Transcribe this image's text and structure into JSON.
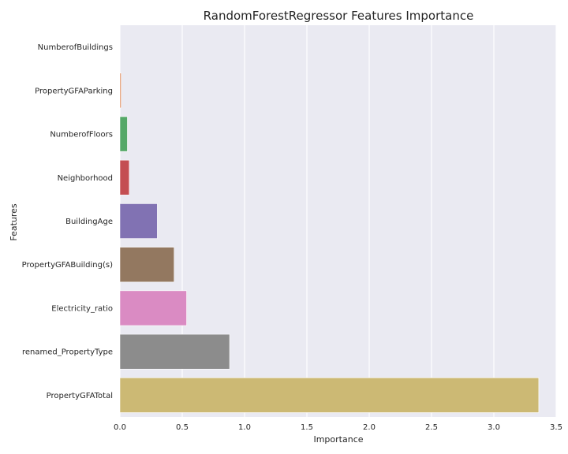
{
  "chart_data": {
    "type": "bar",
    "orientation": "horizontal",
    "title": "RandomForestRegressor Features Importance",
    "xlabel": "Importance",
    "ylabel": "Features",
    "xlim": [
      0,
      3.5
    ],
    "xticks": [
      0.0,
      0.5,
      1.0,
      1.5,
      2.0,
      2.5,
      3.0,
      3.5
    ],
    "xtick_labels": [
      "0.0",
      "0.5",
      "1.0",
      "1.5",
      "2.0",
      "2.5",
      "3.0",
      "3.5"
    ],
    "grid": "vertical",
    "background": "#eaeaf2",
    "categories": [
      "NumberofBuildings",
      "PropertyGFAParking",
      "NumberofFloors",
      "Neighborhood",
      "BuildingAge",
      "PropertyGFABuilding(s)",
      "Electricity_ratio",
      "renamed_PropertyType",
      "PropertyGFATotal"
    ],
    "values": [
      0.0,
      0.01,
      0.06,
      0.075,
      0.3,
      0.435,
      0.535,
      0.88,
      3.36
    ],
    "colors": [
      "#4c72b0",
      "#dd8452",
      "#55a868",
      "#c44e52",
      "#8172b3",
      "#937860",
      "#da8bc3",
      "#8c8c8c",
      "#ccb974"
    ]
  }
}
